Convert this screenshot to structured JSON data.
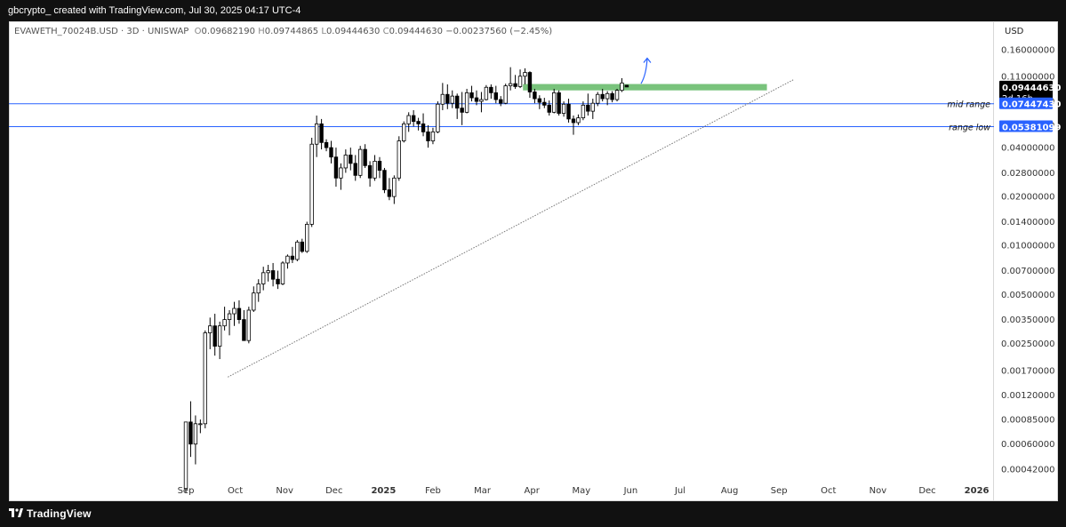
{
  "header": {
    "attribution": "gbcrypto_ created with TradingView.com, Jul 30, 2025 04:17 UTC-4"
  },
  "legend": {
    "symbol": "EVAWETH_70024B.USD · 3D · UNISWAP",
    "o_label": "O",
    "o_value": "0.09682190",
    "h_label": "H",
    "h_value": "0.09744865",
    "l_label": "L",
    "l_value": "0.09444630",
    "c_label": "C",
    "c_value": "0.09444630",
    "change": "−0.00237560 (−2.45%)"
  },
  "axis": {
    "currency": "USD"
  },
  "price_tags": {
    "last": {
      "value": "0.09444630",
      "countdown": "2d 16h",
      "color": "#000000"
    },
    "mid": {
      "label": "mid range",
      "value": "0.07447430",
      "color": "#2962ff"
    },
    "low": {
      "label": "range low",
      "value": "0.05381099",
      "color": "#2962ff"
    }
  },
  "footer": {
    "brand": "TradingView"
  },
  "chart_data": {
    "type": "candlestick",
    "scale": "log",
    "y_ticks": [
      "0.16000000",
      "0.11000000",
      "0.07700000",
      "0.05500000",
      "0.04000000",
      "0.02800000",
      "0.02000000",
      "0.01400000",
      "0.01000000",
      "0.00700000",
      "0.00500000",
      "0.00350000",
      "0.00250000",
      "0.00170000",
      "0.00120000",
      "0.00085000",
      "0.00060000",
      "0.00042000"
    ],
    "x_ticks": [
      "Sep",
      "Oct",
      "Nov",
      "Dec",
      "2025",
      "Feb",
      "Mar",
      "Apr",
      "May",
      "Jun",
      "Jul",
      "Aug",
      "Sep",
      "Oct",
      "Nov",
      "Dec",
      "2026"
    ],
    "candles": [
      [
        0.00032,
        0.00082,
        0.0003,
        0.00082
      ],
      [
        0.00082,
        0.0011,
        0.0005,
        0.0006
      ],
      [
        0.0006,
        0.0009,
        0.00045,
        0.0008
      ],
      [
        0.0008,
        0.00085,
        0.0007,
        0.0008
      ],
      [
        0.0008,
        0.003,
        0.00075,
        0.0029
      ],
      [
        0.0029,
        0.0036,
        0.0023,
        0.0032
      ],
      [
        0.0032,
        0.0038,
        0.0021,
        0.0024
      ],
      [
        0.0024,
        0.0034,
        0.002,
        0.0032
      ],
      [
        0.0032,
        0.0042,
        0.003,
        0.0035
      ],
      [
        0.0035,
        0.004,
        0.0028,
        0.0038
      ],
      [
        0.0038,
        0.0045,
        0.0032,
        0.0041
      ],
      [
        0.0041,
        0.0046,
        0.0033,
        0.0035
      ],
      [
        0.0035,
        0.004,
        0.0029,
        0.0026
      ],
      [
        0.0026,
        0.0042,
        0.0025,
        0.004
      ],
      [
        0.004,
        0.0056,
        0.0039,
        0.0051
      ],
      [
        0.0051,
        0.0062,
        0.0045,
        0.0058
      ],
      [
        0.0058,
        0.0074,
        0.0053,
        0.0068
      ],
      [
        0.0068,
        0.0076,
        0.006,
        0.007
      ],
      [
        0.007,
        0.0078,
        0.0056,
        0.0062
      ],
      [
        0.0062,
        0.007,
        0.0054,
        0.0058
      ],
      [
        0.0058,
        0.008,
        0.0057,
        0.0078
      ],
      [
        0.0078,
        0.0088,
        0.0072,
        0.0086
      ],
      [
        0.0086,
        0.0098,
        0.0078,
        0.0082
      ],
      [
        0.0082,
        0.0108,
        0.008,
        0.0105
      ],
      [
        0.0105,
        0.011,
        0.009,
        0.0092
      ],
      [
        0.0092,
        0.014,
        0.009,
        0.0135
      ],
      [
        0.0135,
        0.046,
        0.013,
        0.042
      ],
      [
        0.042,
        0.063,
        0.035,
        0.056
      ],
      [
        0.056,
        0.06,
        0.039,
        0.043
      ],
      [
        0.043,
        0.045,
        0.038,
        0.04
      ],
      [
        0.04,
        0.044,
        0.032,
        0.035
      ],
      [
        0.035,
        0.04,
        0.023,
        0.026
      ],
      [
        0.026,
        0.032,
        0.022,
        0.03
      ],
      [
        0.03,
        0.039,
        0.028,
        0.036
      ],
      [
        0.036,
        0.04,
        0.029,
        0.032
      ],
      [
        0.032,
        0.036,
        0.025,
        0.027
      ],
      [
        0.027,
        0.041,
        0.026,
        0.039
      ],
      [
        0.039,
        0.042,
        0.03,
        0.031
      ],
      [
        0.031,
        0.033,
        0.023,
        0.026
      ],
      [
        0.026,
        0.036,
        0.025,
        0.033
      ],
      [
        0.033,
        0.035,
        0.026,
        0.029
      ],
      [
        0.029,
        0.03,
        0.021,
        0.022
      ],
      [
        0.022,
        0.026,
        0.019,
        0.02
      ],
      [
        0.02,
        0.027,
        0.018,
        0.026
      ],
      [
        0.026,
        0.047,
        0.025,
        0.044
      ],
      [
        0.044,
        0.058,
        0.043,
        0.056
      ],
      [
        0.056,
        0.066,
        0.05,
        0.063
      ],
      [
        0.063,
        0.068,
        0.054,
        0.058
      ],
      [
        0.058,
        0.061,
        0.051,
        0.056
      ],
      [
        0.056,
        0.065,
        0.047,
        0.05
      ],
      [
        0.05,
        0.055,
        0.04,
        0.044
      ],
      [
        0.044,
        0.053,
        0.042,
        0.05
      ],
      [
        0.05,
        0.077,
        0.049,
        0.074
      ],
      [
        0.074,
        0.1,
        0.068,
        0.085
      ],
      [
        0.085,
        0.098,
        0.069,
        0.075
      ],
      [
        0.075,
        0.09,
        0.07,
        0.083
      ],
      [
        0.083,
        0.086,
        0.06,
        0.07
      ],
      [
        0.07,
        0.088,
        0.055,
        0.066
      ],
      [
        0.066,
        0.092,
        0.065,
        0.087
      ],
      [
        0.087,
        0.096,
        0.077,
        0.081
      ],
      [
        0.081,
        0.09,
        0.073,
        0.077
      ],
      [
        0.077,
        0.088,
        0.066,
        0.079
      ],
      [
        0.079,
        0.097,
        0.078,
        0.094
      ],
      [
        0.094,
        0.098,
        0.08,
        0.087
      ],
      [
        0.087,
        0.096,
        0.075,
        0.079
      ],
      [
        0.079,
        0.083,
        0.072,
        0.075
      ],
      [
        0.075,
        0.099,
        0.074,
        0.096
      ],
      [
        0.096,
        0.125,
        0.09,
        0.099
      ],
      [
        0.099,
        0.112,
        0.092,
        0.095
      ],
      [
        0.095,
        0.121,
        0.093,
        0.11
      ],
      [
        0.11,
        0.123,
        0.098,
        0.116
      ],
      [
        0.116,
        0.118,
        0.081,
        0.088
      ],
      [
        0.088,
        0.092,
        0.075,
        0.08
      ],
      [
        0.08,
        0.084,
        0.069,
        0.076
      ],
      [
        0.076,
        0.081,
        0.07,
        0.073
      ],
      [
        0.073,
        0.078,
        0.063,
        0.066
      ],
      [
        0.066,
        0.092,
        0.065,
        0.087
      ],
      [
        0.087,
        0.09,
        0.063,
        0.065
      ],
      [
        0.065,
        0.077,
        0.062,
        0.074
      ],
      [
        0.074,
        0.08,
        0.057,
        0.06
      ],
      [
        0.06,
        0.063,
        0.048,
        0.057
      ],
      [
        0.057,
        0.064,
        0.055,
        0.061
      ],
      [
        0.061,
        0.077,
        0.059,
        0.073
      ],
      [
        0.073,
        0.086,
        0.063,
        0.067
      ],
      [
        0.067,
        0.08,
        0.06,
        0.075
      ],
      [
        0.075,
        0.088,
        0.072,
        0.085
      ],
      [
        0.085,
        0.092,
        0.077,
        0.08
      ],
      [
        0.08,
        0.089,
        0.073,
        0.086
      ],
      [
        0.086,
        0.089,
        0.076,
        0.079
      ],
      [
        0.079,
        0.092,
        0.077,
        0.09
      ],
      [
        0.09,
        0.107,
        0.088,
        0.1
      ],
      [
        0.09682,
        0.09745,
        0.09445,
        0.09445
      ]
    ],
    "horizontal_levels": [
      {
        "label": "mid range",
        "value": 0.0744743
      },
      {
        "label": "range low",
        "value": 0.05381099
      }
    ],
    "resistance_zone": {
      "low": 0.09,
      "high": 0.0985
    },
    "trendline": {
      "from": {
        "month": "Oct 2024",
        "value": 0.00155
      },
      "to": {
        "month": "Sep 2025",
        "value": 0.0985
      }
    },
    "projection_arrow": "up",
    "grid": false,
    "colors": {
      "up": "#ffffff",
      "down": "#000000",
      "level": "#2962ff",
      "zone": "#4caf50"
    }
  }
}
